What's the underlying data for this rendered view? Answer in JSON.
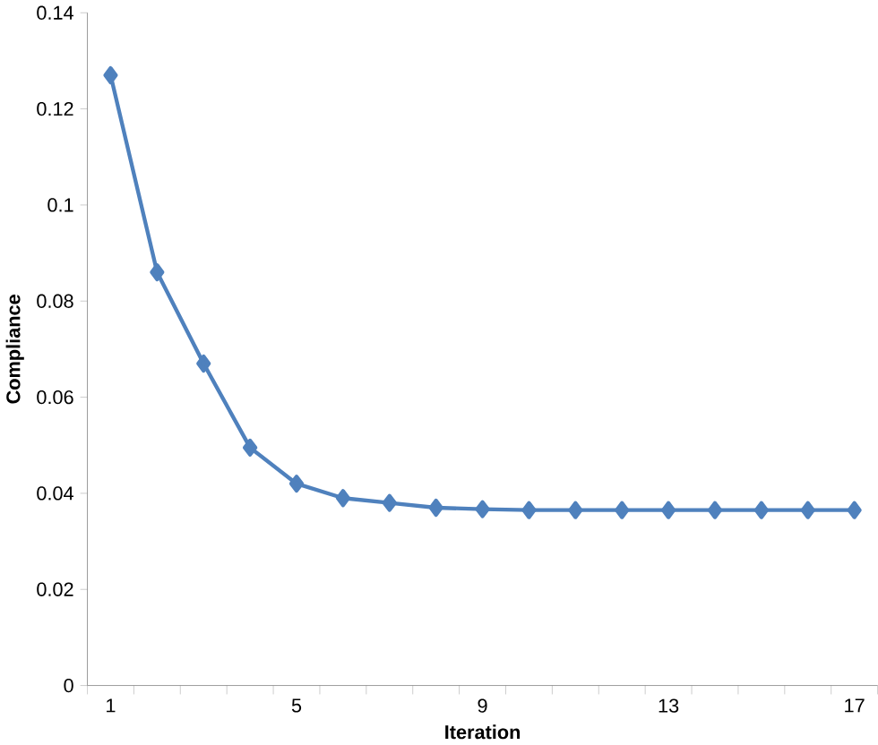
{
  "chart_data": {
    "type": "line",
    "xlabel": "Iteration",
    "ylabel": "Compliance",
    "categories": [
      "1",
      null,
      null,
      null,
      "5",
      null,
      null,
      null,
      "9",
      null,
      null,
      null,
      "13",
      null,
      null,
      null,
      "17"
    ],
    "series": [
      {
        "color": "#4f81bd",
        "values": [
          0.127,
          0.086,
          0.067,
          0.0495,
          0.042,
          0.039,
          0.038,
          0.037,
          0.0367,
          0.0365,
          0.0365,
          0.0365,
          0.0365,
          0.0365,
          0.0365,
          0.0365,
          0.0365
        ]
      }
    ],
    "ylim": [
      0,
      0.14
    ],
    "yticks": [
      0,
      0.02,
      0.04,
      0.06,
      0.08,
      0.1,
      0.12,
      0.14
    ],
    "marker": "diamond",
    "line_style": "solid"
  }
}
